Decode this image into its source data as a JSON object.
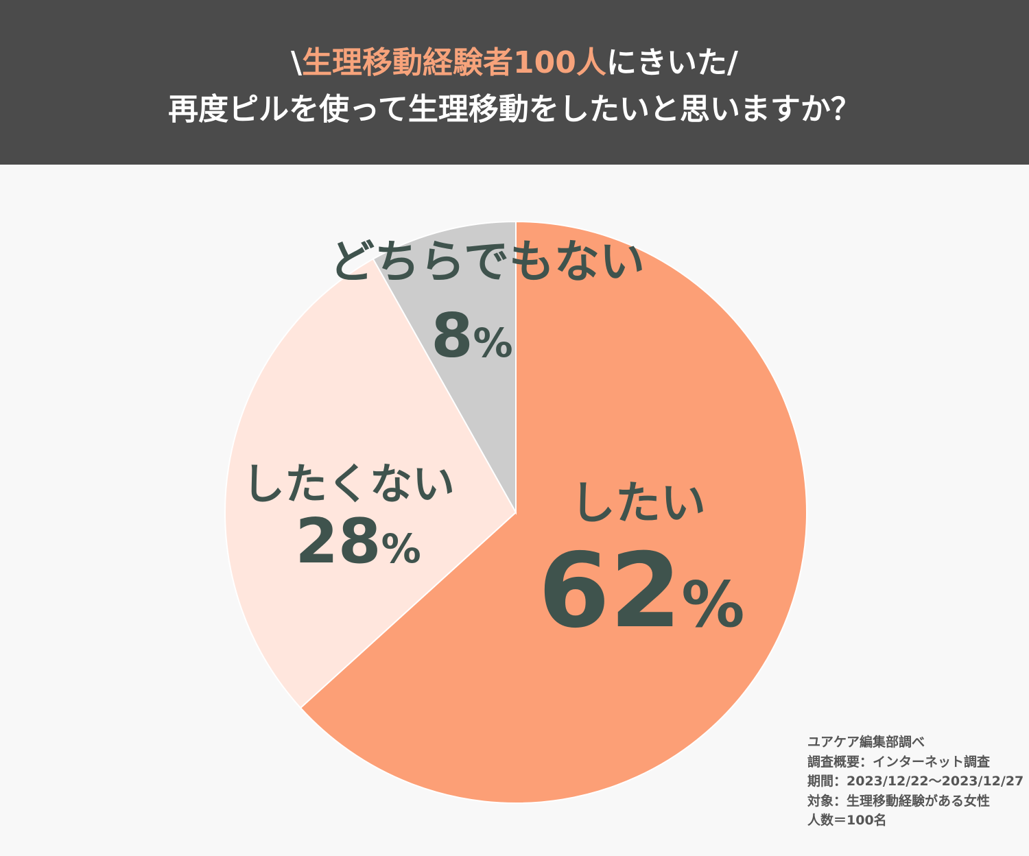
{
  "header": {
    "title_prefix": "\\",
    "title_highlight": "生理移動経験者100人",
    "title_suffix": "にきいた/",
    "title_line2": "再度ピルを使って生理移動をしたいと思いますか？"
  },
  "colors": {
    "header_bg": "#4b4b4b",
    "highlight": "#f7a37b",
    "yes": "#fc9f76",
    "no": "#ffe6dd",
    "neutral": "#cccccc",
    "label_text": "#3f534d"
  },
  "chart_data": {
    "type": "pie",
    "categories": [
      "したい",
      "したくない",
      "どちらでもない"
    ],
    "values": [
      62,
      28,
      8
    ],
    "unit": "%",
    "start": "12 o'clock, clockwise"
  },
  "labels": {
    "yes_name": "したい",
    "yes_value": "62",
    "no_name": "したくない",
    "no_value": "28",
    "neutral_name": "どちらでもない",
    "neutral_value": "8",
    "percent": "%"
  },
  "source": {
    "line1": "ユアケア編集部調べ",
    "line2": "調査概要：インターネット調査",
    "line3": "期間：2023/12/22〜2023/12/27",
    "line4": "対象：生理移動経験がある女性",
    "line5": "人数＝100名"
  }
}
